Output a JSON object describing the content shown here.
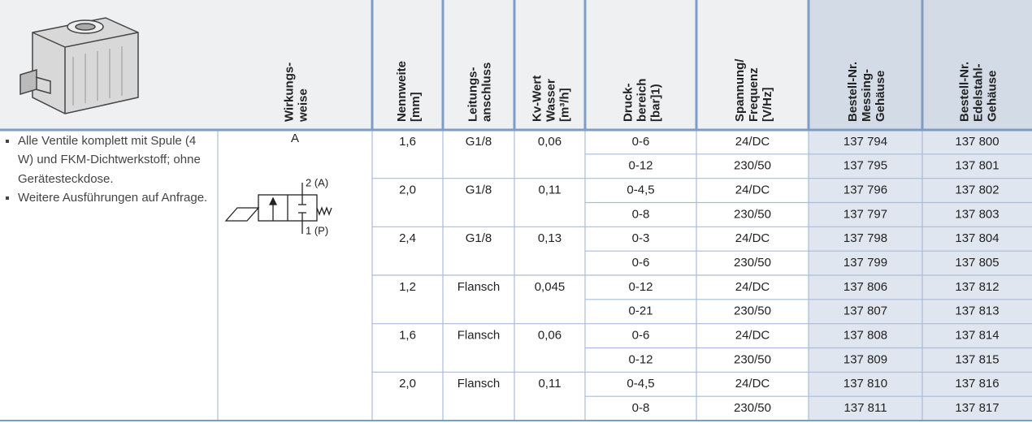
{
  "header": {
    "columns": [
      [
        "Wirkungs-",
        "weise"
      ],
      [
        "Nennweite",
        "[mm]"
      ],
      [
        "Leitungs-",
        "anschluss"
      ],
      [
        "Kv-Wert",
        "Wasser",
        "[m³/h]"
      ],
      [
        "Druck-",
        "bereich",
        "[bar]1)"
      ],
      [
        "Spannung/",
        "Frequenz",
        "[V/Hz]"
      ],
      [
        "Bestell-Nr.",
        "Messing-",
        "Gehäuse"
      ],
      [
        "Bestell-Nr.",
        "Edelstahl-",
        "Gehäuse"
      ]
    ]
  },
  "notes": [
    "Alle Ventile komplett mit Spule (4 W) und FKM-Dichtwerkstoff; ohne Gerätesteckdose.",
    "Weitere Ausführungen auf Anfrage."
  ],
  "function": {
    "label": "A",
    "port_top": "2 (A)",
    "port_bottom": "1 (P)"
  },
  "groups": [
    {
      "nennweite": "1,6",
      "anschluss": "G1/8",
      "kv": "0,06",
      "rows": [
        [
          "0-6",
          "24/DC",
          "137 794",
          "137 800"
        ],
        [
          "0-12",
          "230/50",
          "137 795",
          "137 801"
        ]
      ]
    },
    {
      "nennweite": "2,0",
      "anschluss": "G1/8",
      "kv": "0,11",
      "rows": [
        [
          "0-4,5",
          "24/DC",
          "137 796",
          "137 802"
        ],
        [
          "0-8",
          "230/50",
          "137 797",
          "137 803"
        ]
      ]
    },
    {
      "nennweite": "2,4",
      "anschluss": "G1/8",
      "kv": "0,13",
      "rows": [
        [
          "0-3",
          "24/DC",
          "137 798",
          "137 804"
        ],
        [
          "0-6",
          "230/50",
          "137 799",
          "137 805"
        ]
      ]
    },
    {
      "nennweite": "1,2",
      "anschluss": "Flansch",
      "kv": "0,045",
      "rows": [
        [
          "0-12",
          "24/DC",
          "137 806",
          "137 812"
        ],
        [
          "0-21",
          "230/50",
          "137 807",
          "137 813"
        ]
      ]
    },
    {
      "nennweite": "1,6",
      "anschluss": "Flansch",
      "kv": "0,06",
      "rows": [
        [
          "0-6",
          "24/DC",
          "137 808",
          "137 814"
        ],
        [
          "0-12",
          "230/50",
          "137 809",
          "137 815"
        ]
      ]
    },
    {
      "nennweite": "2,0",
      "anschluss": "Flansch",
      "kv": "0,11",
      "rows": [
        [
          "0-4,5",
          "24/DC",
          "137 810",
          "137 816"
        ],
        [
          "0-8",
          "230/50",
          "137 811",
          "137 817"
        ]
      ]
    }
  ]
}
